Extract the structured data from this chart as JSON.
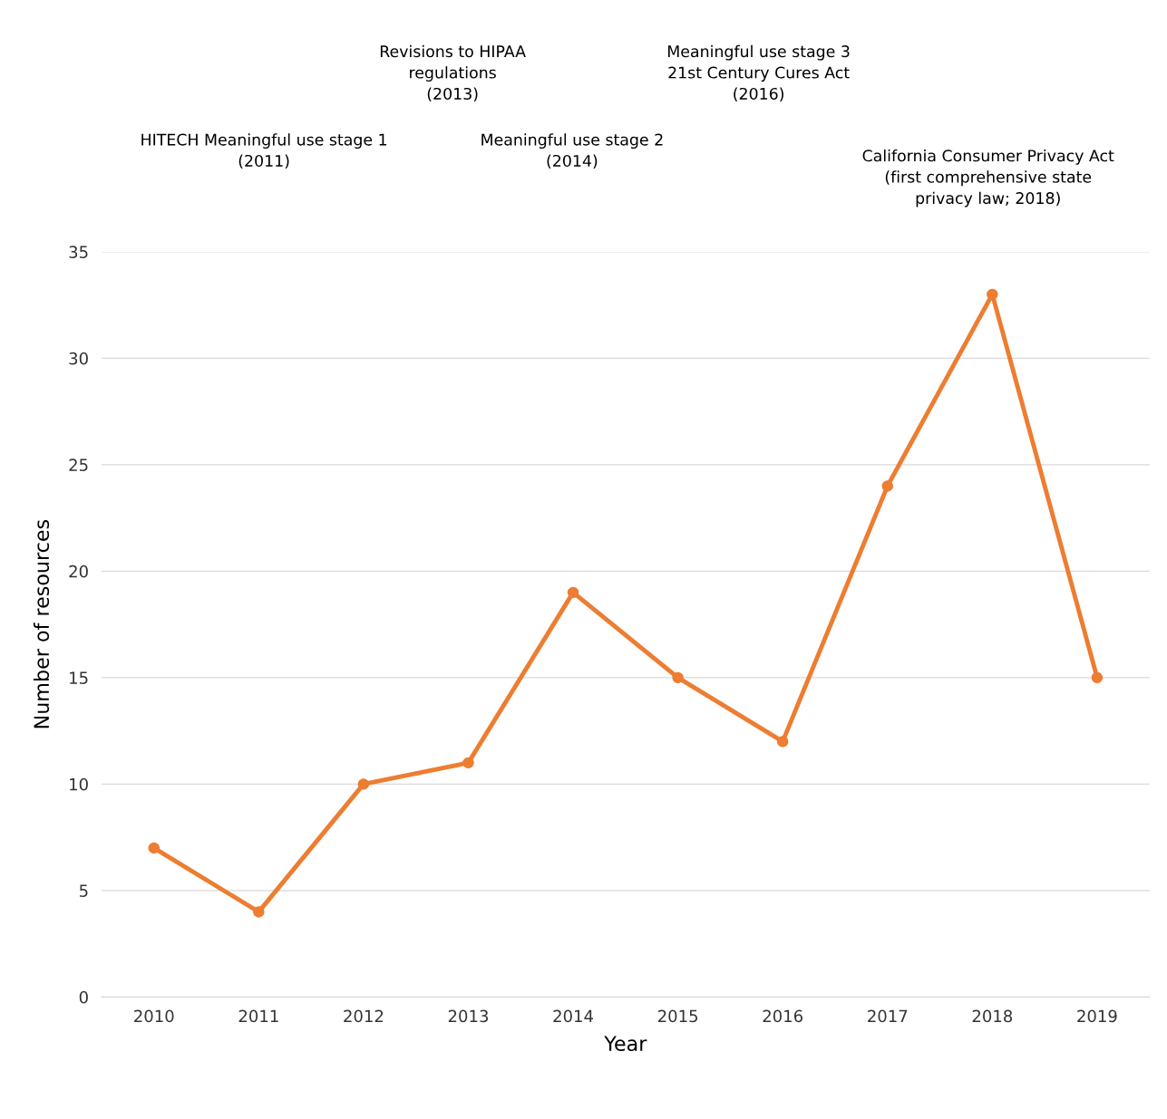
{
  "chart_data": {
    "type": "line",
    "xlabel": "Year",
    "ylabel": "Number of resources",
    "categories": [
      "2010",
      "2011",
      "2012",
      "2013",
      "2014",
      "2015",
      "2016",
      "2017",
      "2018",
      "2019"
    ],
    "series": [
      {
        "color": "#ed7d31",
        "values": [
          7,
          4,
          10,
          11,
          19,
          15,
          12,
          24,
          33,
          15
        ]
      }
    ],
    "ylim": [
      0,
      35
    ],
    "yticks": [
      0,
      5,
      10,
      15,
      20,
      25,
      30,
      35
    ],
    "grid": "y",
    "marker": "circle",
    "line_style": "solid",
    "annotations": [
      "HITECH Meaningful use stage 1\n(2011)",
      "Revisions to HIPAA\nregulations\n(2013)",
      "Meaningful use stage 2\n(2014)",
      "Meaningful use stage 3\n21st Century Cures Act\n(2016)",
      "California Consumer Privacy Act\n(first comprehensive state\nprivacy law; 2018)"
    ]
  }
}
